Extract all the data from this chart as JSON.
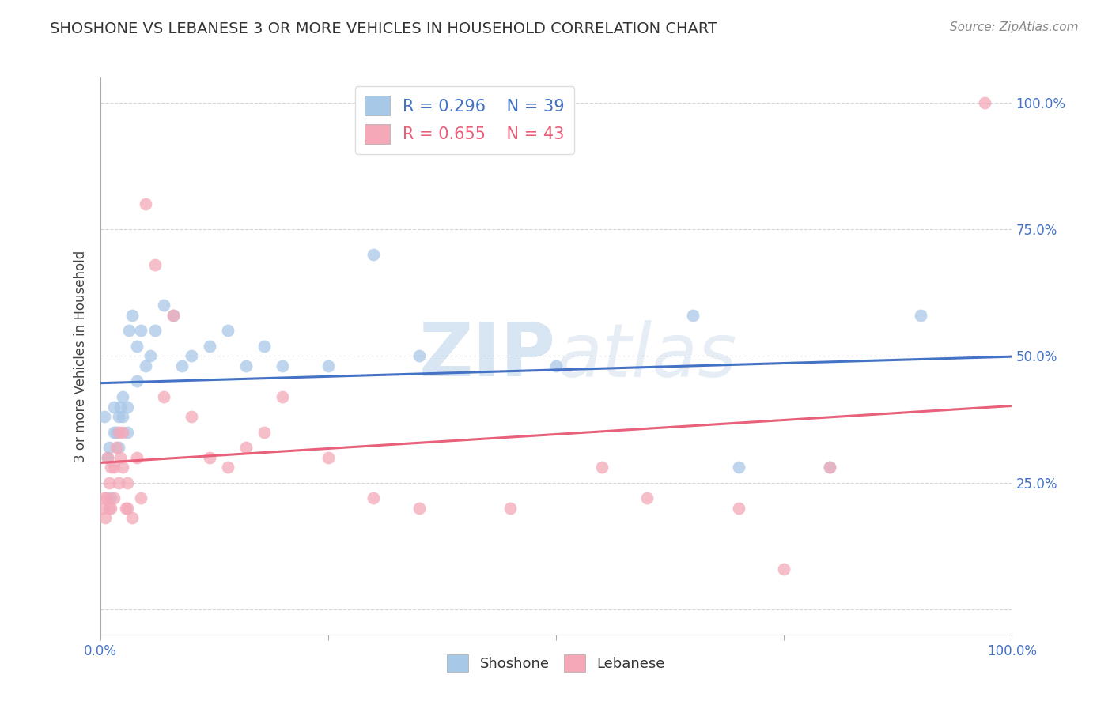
{
  "title": "SHOSHONE VS LEBANESE 3 OR MORE VEHICLES IN HOUSEHOLD CORRELATION CHART",
  "source_text": "Source: ZipAtlas.com",
  "ylabel": "3 or more Vehicles in Household",
  "xlim": [
    0.0,
    1.0
  ],
  "ylim": [
    -0.05,
    1.05
  ],
  "plot_ylim": [
    0.0,
    1.0
  ],
  "xticks": [
    0.0,
    0.25,
    0.5,
    0.75,
    1.0
  ],
  "yticks": [
    0.0,
    0.25,
    0.5,
    0.75,
    1.0
  ],
  "xtick_labels": [
    "0.0%",
    "",
    "",
    "",
    "100.0%"
  ],
  "ytick_labels_right": [
    "",
    "25.0%",
    "50.0%",
    "75.0%",
    "100.0%"
  ],
  "watermark": "ZIPatlas",
  "shoshone_color": "#A8C8E8",
  "lebanese_color": "#F4A8B8",
  "shoshone_line_color": "#4472C4",
  "lebanese_line_color": "#E8607A",
  "shoshone_R": 0.296,
  "shoshone_N": 39,
  "lebanese_R": 0.655,
  "lebanese_N": 43,
  "shoshone_x": [
    0.005,
    0.008,
    0.01,
    0.012,
    0.015,
    0.015,
    0.018,
    0.02,
    0.02,
    0.022,
    0.025,
    0.025,
    0.03,
    0.03,
    0.032,
    0.035,
    0.04,
    0.04,
    0.045,
    0.05,
    0.055,
    0.06,
    0.07,
    0.08,
    0.09,
    0.1,
    0.12,
    0.14,
    0.16,
    0.18,
    0.2,
    0.25,
    0.3,
    0.35,
    0.5,
    0.65,
    0.7,
    0.8,
    0.9
  ],
  "shoshone_y": [
    0.38,
    0.3,
    0.32,
    0.22,
    0.4,
    0.35,
    0.35,
    0.38,
    0.32,
    0.4,
    0.42,
    0.38,
    0.4,
    0.35,
    0.55,
    0.58,
    0.45,
    0.52,
    0.55,
    0.48,
    0.5,
    0.55,
    0.6,
    0.58,
    0.48,
    0.5,
    0.52,
    0.55,
    0.48,
    0.52,
    0.48,
    0.48,
    0.7,
    0.5,
    0.48,
    0.58,
    0.28,
    0.28,
    0.58
  ],
  "lebanese_x": [
    0.003,
    0.005,
    0.006,
    0.007,
    0.008,
    0.01,
    0.01,
    0.012,
    0.012,
    0.015,
    0.015,
    0.018,
    0.02,
    0.02,
    0.022,
    0.025,
    0.025,
    0.028,
    0.03,
    0.03,
    0.035,
    0.04,
    0.045,
    0.05,
    0.06,
    0.07,
    0.08,
    0.1,
    0.12,
    0.14,
    0.16,
    0.18,
    0.2,
    0.25,
    0.3,
    0.35,
    0.45,
    0.55,
    0.6,
    0.7,
    0.75,
    0.8,
    0.97
  ],
  "lebanese_y": [
    0.2,
    0.22,
    0.18,
    0.22,
    0.3,
    0.2,
    0.25,
    0.2,
    0.28,
    0.22,
    0.28,
    0.32,
    0.25,
    0.35,
    0.3,
    0.35,
    0.28,
    0.2,
    0.25,
    0.2,
    0.18,
    0.3,
    0.22,
    0.8,
    0.68,
    0.42,
    0.58,
    0.38,
    0.3,
    0.28,
    0.32,
    0.35,
    0.42,
    0.3,
    0.22,
    0.2,
    0.2,
    0.28,
    0.22,
    0.2,
    0.08,
    0.28,
    1.0
  ],
  "background_color": "#FFFFFF",
  "grid_color": "#CCCCCC",
  "title_color": "#333333",
  "axis_tick_color": "#4472C4",
  "legend_R_color_shoshone": "#4472C4",
  "legend_R_color_lebanese": "#E8607A"
}
